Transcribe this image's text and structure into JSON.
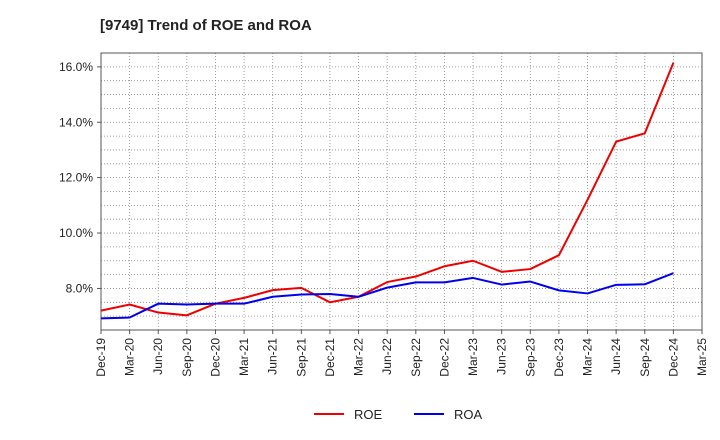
{
  "chart_data": {
    "type": "line",
    "title": "[9749]  Trend of ROE and ROA",
    "xlabel": "",
    "ylabel": "",
    "categories": [
      "Dec-19",
      "Mar-20",
      "Jun-20",
      "Sep-20",
      "Dec-20",
      "Mar-21",
      "Jun-21",
      "Sep-21",
      "Dec-21",
      "Mar-22",
      "Jun-22",
      "Sep-22",
      "Dec-22",
      "Mar-23",
      "Jun-23",
      "Sep-23",
      "Dec-23",
      "Mar-24",
      "Jun-24",
      "Sep-24",
      "Dec-24",
      "Mar-25"
    ],
    "ylim": [
      6.5,
      16.5
    ],
    "yticks": [
      8.0,
      10.0,
      12.0,
      14.0,
      16.0
    ],
    "ytick_labels": [
      "8.0%",
      "10.0%",
      "12.0%",
      "14.0%",
      "16.0%"
    ],
    "grid": true,
    "legend_position": "bottom-center",
    "series": [
      {
        "name": "ROE",
        "color": "#ee0000",
        "values": [
          7.2,
          7.42,
          7.13,
          7.03,
          7.45,
          7.66,
          7.94,
          8.02,
          7.5,
          7.7,
          8.23,
          8.43,
          8.8,
          9.0,
          8.6,
          8.7,
          9.2,
          11.2,
          13.3,
          13.6,
          16.15,
          null
        ]
      },
      {
        "name": "ROA",
        "color": "#0000ee",
        "values": [
          6.92,
          6.95,
          7.45,
          7.42,
          7.45,
          7.45,
          7.7,
          7.78,
          7.8,
          7.7,
          8.03,
          8.22,
          8.22,
          8.38,
          8.14,
          8.25,
          7.93,
          7.82,
          8.13,
          8.15,
          8.55,
          null
        ]
      }
    ]
  }
}
